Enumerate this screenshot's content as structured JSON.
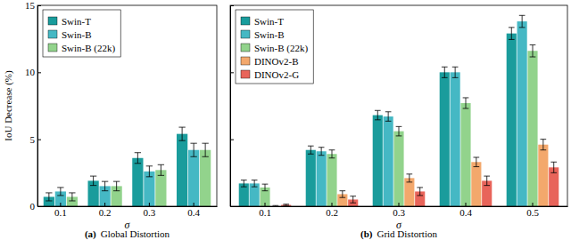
{
  "chart_data": [
    {
      "type": "bar",
      "panel_label": "(a)",
      "title": "Global Distortion",
      "xlabel": "σ",
      "ylabel": "IoU Decrease (%)",
      "categories": [
        "0.1",
        "0.2",
        "0.3",
        "0.4"
      ],
      "series": [
        {
          "name": "Swin-T",
          "color": "#1a9c9c",
          "values": [
            0.7,
            1.9,
            3.6,
            5.4
          ],
          "errors": [
            0.3,
            0.35,
            0.4,
            0.5
          ]
        },
        {
          "name": "Swin-B",
          "color": "#45b8c4",
          "values": [
            1.1,
            1.5,
            2.6,
            4.2
          ],
          "errors": [
            0.3,
            0.35,
            0.4,
            0.5
          ]
        },
        {
          "name": "Swin-B (22k)",
          "color": "#92d38c",
          "values": [
            0.7,
            1.5,
            2.7,
            4.2
          ],
          "errors": [
            0.3,
            0.35,
            0.4,
            0.5
          ]
        }
      ],
      "ylim": [
        0,
        15
      ],
      "yticks": [
        0,
        5,
        10,
        15
      ],
      "grid": false,
      "legend": "upper left"
    },
    {
      "type": "bar",
      "panel_label": "(b)",
      "title": "Grid Distortion",
      "xlabel": "σ",
      "categories": [
        "0.1",
        "0.2",
        "0.3",
        "0.4",
        "0.5"
      ],
      "series": [
        {
          "name": "Swin-T",
          "color": "#1a9c9c",
          "values": [
            1.7,
            4.2,
            6.8,
            10.0,
            12.9
          ],
          "errors": [
            0.25,
            0.3,
            0.35,
            0.4,
            0.45
          ]
        },
        {
          "name": "Swin-B",
          "color": "#45b8c4",
          "values": [
            1.7,
            4.1,
            6.7,
            10.0,
            13.8
          ],
          "errors": [
            0.25,
            0.3,
            0.35,
            0.4,
            0.45
          ]
        },
        {
          "name": "Swin-B (22k)",
          "color": "#92d38c",
          "values": [
            1.4,
            3.9,
            5.6,
            7.7,
            11.6
          ],
          "errors": [
            0.25,
            0.3,
            0.35,
            0.4,
            0.45
          ]
        },
        {
          "name": "DINOv2-B",
          "color": "#f3a86c",
          "values": [
            0.0,
            0.9,
            2.1,
            3.3,
            4.6
          ],
          "errors": [
            0.05,
            0.25,
            0.3,
            0.35,
            0.4
          ]
        },
        {
          "name": "DINOv2-G",
          "color": "#e8645a",
          "values": [
            0.1,
            0.5,
            1.1,
            1.9,
            2.9
          ],
          "errors": [
            0.05,
            0.25,
            0.3,
            0.35,
            0.4
          ]
        }
      ],
      "ylim": [
        0,
        15
      ],
      "yticks": [
        0,
        5,
        10,
        15
      ],
      "grid": false,
      "legend": "upper left",
      "tick_labels": "x"
    }
  ]
}
